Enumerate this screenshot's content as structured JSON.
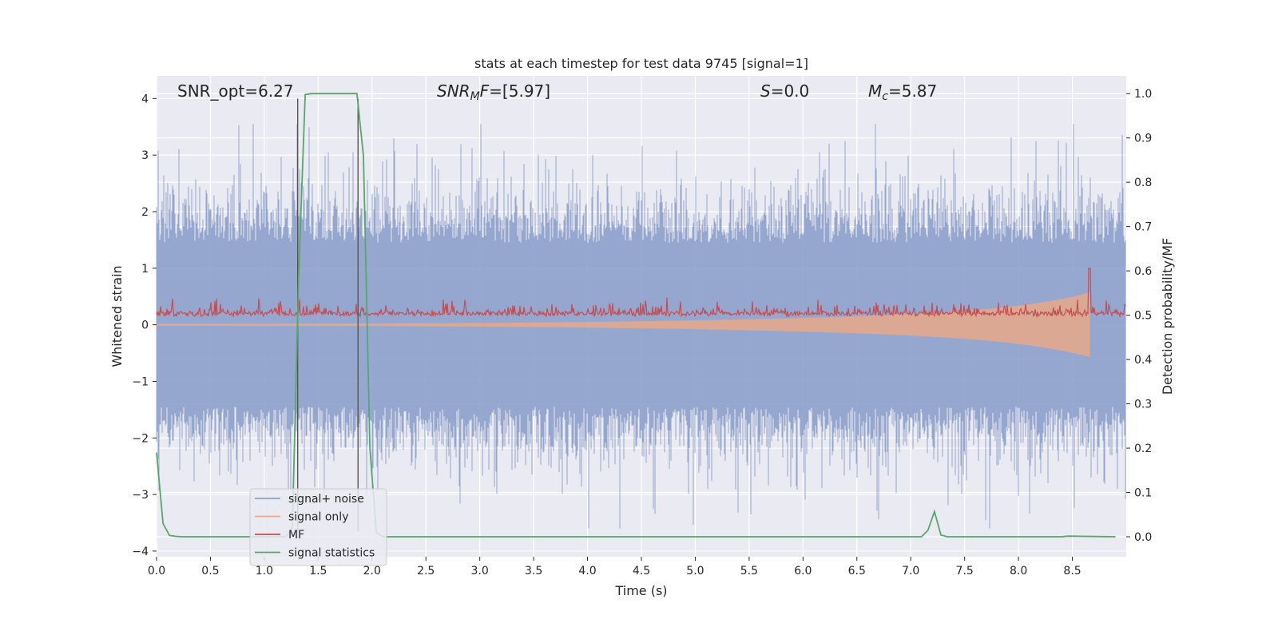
{
  "chart_data": {
    "type": "line",
    "title": "stats at each timestep for test data 9745 [signal=1]",
    "xlabel": "Time (s)",
    "ylabel": "Whitened strain",
    "y2label": "Detection probability/MF",
    "xlim": [
      0,
      9
    ],
    "ylim": [
      -4.1,
      4.4
    ],
    "y2lim": [
      -0.045,
      1.04
    ],
    "x_ticks": [
      "0.0",
      "0.5",
      "1.0",
      "1.5",
      "2.0",
      "2.5",
      "3.0",
      "3.5",
      "4.0",
      "4.5",
      "5.0",
      "5.5",
      "6.0",
      "6.5",
      "7.0",
      "7.5",
      "8.0",
      "8.5"
    ],
    "y_ticks": [
      "4",
      "3",
      "2",
      "1",
      "0",
      "−1",
      "−2",
      "−3",
      "−4"
    ],
    "y2_ticks": [
      "1.0",
      "0.9",
      "0.8",
      "0.7",
      "0.6",
      "0.5",
      "0.4",
      "0.3",
      "0.2",
      "0.1",
      "0.0"
    ],
    "grid": true,
    "legend_position": "lower-left",
    "annotations": {
      "snr_opt": "SNR_opt=6.27",
      "snr_mf_label": "SNR",
      "snr_mf_sub": "M",
      "snr_mf_f": "F",
      "snr_mf_value": "=[5.97]",
      "s_label": "S",
      "s_value": "=0.0",
      "mc_label": "M",
      "mc_sub": "c",
      "mc_value": "=5.87"
    },
    "vertical_markers": [
      1.31,
      1.87
    ],
    "series": [
      {
        "name": "signal+ noise",
        "color": "#8da0cb",
        "axis": "left",
        "envelope": "noise, approx. ±1.5 typical, peaks to ±3.5"
      },
      {
        "name": "signal only",
        "color": "#e8a88a",
        "axis": "left",
        "envelope": "chirp growing from 0 to about ±0.6 at 8.66 s"
      },
      {
        "name": "MF",
        "color": "#c44e52",
        "axis": "left",
        "baseline": 0.15,
        "peak": {
          "x": 8.66,
          "y": 1.0
        }
      },
      {
        "name": "signal statistics",
        "color": "#55a868",
        "axis": "right",
        "x": [
          0.0,
          0.06,
          0.12,
          0.18,
          0.24,
          0.3,
          1.2,
          1.26,
          1.32,
          1.38,
          1.44,
          1.5,
          1.8,
          1.86,
          1.92,
          1.98,
          2.04,
          2.1,
          2.3,
          7.1,
          7.16,
          7.22,
          7.28,
          7.34,
          8.4,
          8.46,
          8.9
        ],
        "y": [
          0.19,
          0.03,
          0.003,
          0.001,
          0.0,
          0.0,
          0.0,
          0.02,
          0.6,
          0.998,
          1.0,
          1.0,
          1.0,
          1.0,
          0.86,
          0.2,
          0.01,
          0.0,
          0.0,
          0.0,
          0.015,
          0.057,
          0.004,
          0.0,
          0.0,
          0.0015,
          0.0
        ]
      }
    ]
  },
  "legend": {
    "items": [
      {
        "label": "signal+ noise",
        "color": "#8da0cb"
      },
      {
        "label": "signal only",
        "color": "#e8a88a"
      },
      {
        "label": "MF",
        "color": "#c44e52"
      },
      {
        "label": "signal statistics",
        "color": "#55a868"
      }
    ]
  }
}
